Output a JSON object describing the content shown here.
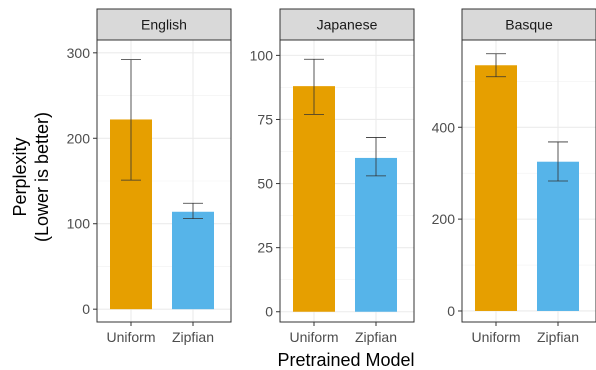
{
  "chart_data": {
    "type": "bar",
    "ylabel_lines": [
      "Perplexity",
      "(Lower is better)"
    ],
    "xlabel": "Pretrained Model",
    "categories": [
      "Uniform",
      "Zipfian"
    ],
    "bar_colors": [
      "#E69F00",
      "#56B4E9"
    ],
    "panels": [
      {
        "title": "English",
        "ylim": [
          -15,
          315
        ],
        "yticks": [
          0,
          100,
          200,
          300
        ],
        "values": [
          222,
          114
        ],
        "err_low": [
          151,
          106
        ],
        "err_high": [
          292,
          124
        ]
      },
      {
        "title": "Japanese",
        "ylim": [
          -4,
          106
        ],
        "yticks": [
          0,
          25,
          50,
          75,
          100
        ],
        "values": [
          88,
          60
        ],
        "err_low": [
          77,
          53
        ],
        "err_high": [
          98.5,
          68
        ]
      },
      {
        "title": "Basque",
        "ylim": [
          -24,
          590
        ],
        "yticks": [
          0,
          200,
          400
        ],
        "values": [
          535,
          325
        ],
        "err_low": [
          510,
          283
        ],
        "err_high": [
          560,
          368
        ]
      }
    ]
  }
}
